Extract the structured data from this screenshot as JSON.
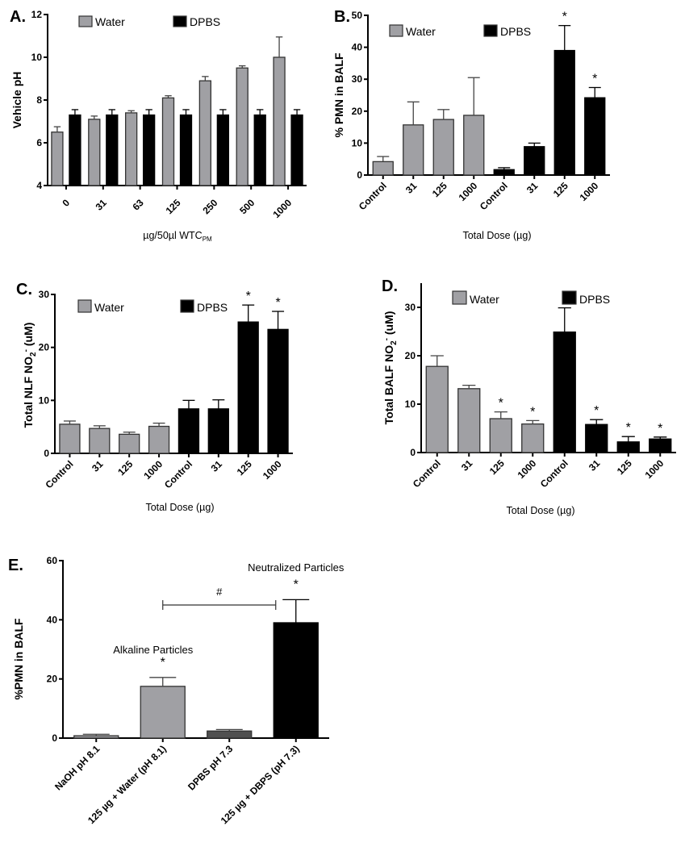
{
  "chart_data": [
    {
      "id": "A",
      "panel_label": "A.",
      "type": "bar",
      "title": "",
      "ylabel": "Vehicle pH",
      "xlabel": "µg/50µl WTC",
      "xlabel_subscript": "PM",
      "ylim": [
        4,
        12
      ],
      "yticks": [
        4,
        6,
        8,
        10,
        12
      ],
      "categories": [
        "0",
        "31",
        "63",
        "125",
        "250",
        "500",
        "1000"
      ],
      "grouped": true,
      "legend": [
        {
          "name": "Water",
          "color": "#a0a0a4"
        },
        {
          "name": "DPBS",
          "color": "#000000"
        }
      ],
      "legend_position": "top",
      "series": [
        {
          "name": "Water",
          "color": "#a0a0a4",
          "values": [
            6.5,
            7.1,
            7.4,
            8.1,
            8.9,
            9.5,
            10.0
          ],
          "errors": [
            0.25,
            0.15,
            0.1,
            0.1,
            0.2,
            0.1,
            0.95
          ]
        },
        {
          "name": "DPBS",
          "color": "#000000",
          "values": [
            7.3,
            7.3,
            7.3,
            7.3,
            7.3,
            7.3,
            7.3
          ],
          "errors": [
            0.25,
            0.25,
            0.25,
            0.25,
            0.25,
            0.25,
            0.25
          ]
        }
      ],
      "significance": []
    },
    {
      "id": "B",
      "panel_label": "B.",
      "type": "bar",
      "title": "",
      "ylabel": "% PMN in BALF",
      "xlabel": "Total  Dose (µg)",
      "ylim": [
        0,
        50
      ],
      "yticks": [
        0,
        10,
        20,
        30,
        40,
        50
      ],
      "categories": [
        "Control",
        "31",
        "125",
        "1000",
        "Control",
        "31",
        "125",
        "1000"
      ],
      "legend": [
        {
          "name": "Water",
          "color": "#a0a0a4"
        },
        {
          "name": "DPBS",
          "color": "#000000"
        }
      ],
      "legend_position": "top",
      "values": [
        4.2,
        15.7,
        17.4,
        18.7,
        1.7,
        8.9,
        39.0,
        24.2
      ],
      "errors": [
        1.6,
        7.2,
        3.1,
        11.8,
        0.6,
        1.1,
        7.8,
        3.2
      ],
      "colors": [
        "#a0a0a4",
        "#a0a0a4",
        "#a0a0a4",
        "#a0a0a4",
        "#000000",
        "#000000",
        "#000000",
        "#000000"
      ],
      "significance": [
        "",
        "",
        "",
        "",
        "",
        "",
        "*",
        "*"
      ]
    },
    {
      "id": "C",
      "panel_label": "C.",
      "type": "bar",
      "title": "",
      "ylabel": "Total NLF NO",
      "ylabel_sub": "2",
      "ylabel_sup": "-",
      "ylabel_unit": " (uM)",
      "xlabel": "Total Dose (µg)",
      "ylim": [
        0,
        30
      ],
      "yticks": [
        0,
        10,
        20,
        30
      ],
      "categories": [
        "Control",
        "31",
        "125",
        "1000",
        "Control",
        "31",
        "125",
        "1000"
      ],
      "legend": [
        {
          "name": "Water",
          "color": "#a0a0a4"
        },
        {
          "name": "DPBS",
          "color": "#000000"
        }
      ],
      "legend_position": "top",
      "values": [
        5.5,
        4.7,
        3.6,
        5.1,
        8.4,
        8.4,
        24.8,
        23.4
      ],
      "errors": [
        0.6,
        0.5,
        0.4,
        0.6,
        1.6,
        1.7,
        3.2,
        3.4
      ],
      "colors": [
        "#a0a0a4",
        "#a0a0a4",
        "#a0a0a4",
        "#a0a0a4",
        "#000000",
        "#000000",
        "#000000",
        "#000000"
      ],
      "significance": [
        "",
        "",
        "",
        "",
        "",
        "",
        "*",
        "*"
      ]
    },
    {
      "id": "D",
      "panel_label": "D.",
      "type": "bar",
      "title": "",
      "ylabel": "Total  BALF NO",
      "ylabel_sub": "2",
      "ylabel_sup": "-",
      "ylabel_unit": " (uM)",
      "xlabel": "Total Dose (µg)",
      "ylim": [
        0,
        35
      ],
      "yticks": [
        0,
        10,
        20,
        30
      ],
      "categories": [
        "Control",
        "31",
        "125",
        "1000",
        "Control",
        "31",
        "125",
        "1000"
      ],
      "legend": [
        {
          "name": "Water",
          "color": "#a0a0a4"
        },
        {
          "name": "DPBS",
          "color": "#000000"
        }
      ],
      "legend_position": "top",
      "values": [
        17.8,
        13.2,
        7.0,
        5.9,
        24.9,
        5.8,
        2.2,
        2.8
      ],
      "errors": [
        2.2,
        0.7,
        1.4,
        0.7,
        5.0,
        1.0,
        1.1,
        0.4
      ],
      "colors": [
        "#a0a0a4",
        "#a0a0a4",
        "#a0a0a4",
        "#a0a0a4",
        "#000000",
        "#000000",
        "#000000",
        "#000000"
      ],
      "significance": [
        "",
        "",
        "*",
        "*",
        "",
        "*",
        "*",
        "*"
      ]
    },
    {
      "id": "E",
      "panel_label": "E.",
      "type": "bar",
      "title": "",
      "ylabel": "%PMN in BALF",
      "xlabel": "",
      "ylim": [
        0,
        60
      ],
      "yticks": [
        0,
        20,
        40,
        60
      ],
      "categories": [
        "NaOH pH 8.1",
        "125 µg + Water (pH 8.1)",
        "DPBS pH 7.3",
        "125 µg + DBPS (pH 7.3)"
      ],
      "values": [
        0.8,
        17.5,
        2.4,
        39.0
      ],
      "errors": [
        0.5,
        3.0,
        0.5,
        7.8
      ],
      "colors": [
        "#a0a0a4",
        "#a0a0a4",
        "#505050",
        "#000000"
      ],
      "significance": [
        "",
        "*",
        "",
        "*"
      ],
      "annotations": [
        {
          "text": "Alkaline Particles",
          "category_index": 1
        },
        {
          "text": "Neutralized Particles",
          "category_index": 3
        }
      ],
      "bracket": {
        "from_index": 1,
        "to_index": 3,
        "label": "#",
        "y_value": 45
      }
    }
  ]
}
